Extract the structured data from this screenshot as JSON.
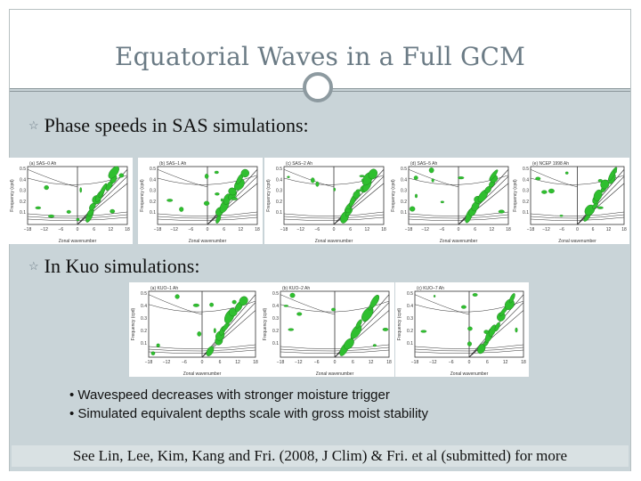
{
  "slide": {
    "title": "Equatorial Waves in a Full GCM",
    "sections": [
      {
        "heading": "Phase speeds in SAS simulations:"
      },
      {
        "heading": "In Kuo simulations:"
      }
    ],
    "notes": [
      "• Wavespeed decreases with stronger moisture trigger",
      "• Simulated equivalent depths scale with gross moist stability"
    ],
    "footer": "See Lin, Lee, Kim, Kang and Fri. (2008, J Clim) & Fri. et al (submitted) for more"
  },
  "panels": {
    "sas": [
      {
        "label": "(a) SAS–0 Ah"
      },
      {
        "label": "(b) SAS–1 Ah"
      },
      {
        "label": "(c) SAS–2 Ah"
      },
      {
        "label": "(d) SAS–5 Ah"
      },
      {
        "label": "(e) NCEP 1998 Ah"
      }
    ],
    "kuo": [
      {
        "label": "(a) KUO–1 Ah"
      },
      {
        "label": "(b) KUO–2 Ah"
      },
      {
        "label": "(c) KUO–7 Ah"
      }
    ],
    "axis": {
      "ylabel": "Frequency (cpd)",
      "xlabel": "Zonal wavenumber",
      "xticks": [
        "−18",
        "−12",
        "−6",
        "0",
        "6",
        "12",
        "18"
      ],
      "yticks": [
        "0.5",
        "0.4",
        "0.3",
        "0.2",
        "0.1"
      ]
    }
  },
  "colors": {
    "contour_fill": "#2fbf2f",
    "contour_line": "#1f7a1f",
    "background_panel": "#c9d4d8",
    "title": "#6b7b85"
  }
}
